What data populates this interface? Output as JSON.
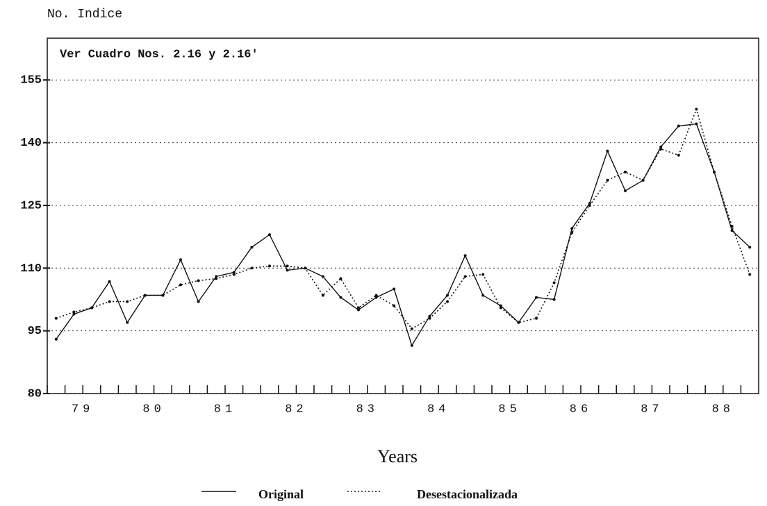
{
  "chart_data": {
    "type": "line",
    "y_label": "No. Indice",
    "annotation": "Ver Cuadro Nos. 2.16 y 2.16'",
    "x_label": "Years",
    "categories": [
      "79",
      null,
      null,
      null,
      "80",
      null,
      null,
      null,
      "81",
      null,
      null,
      null,
      "82",
      null,
      null,
      null,
      "83",
      null,
      null,
      null,
      "84",
      null,
      null,
      null,
      "85",
      null,
      null,
      null,
      "86",
      null,
      null,
      null,
      "87",
      null,
      null,
      null,
      "88",
      null,
      null,
      null
    ],
    "series": [
      {
        "name": "Original",
        "color": "#111111",
        "style": "solid",
        "values": [
          93,
          99,
          100.5,
          106.8,
          97,
          103.5,
          103.5,
          112,
          102,
          108,
          109,
          115,
          118,
          109.5,
          110,
          108,
          103,
          100,
          103,
          105,
          91.5,
          98.5,
          103.5,
          113,
          103.5,
          101,
          97,
          103,
          102.5,
          119.5,
          125.5,
          138,
          128.5,
          131,
          139,
          144,
          144.5,
          133,
          119,
          115
        ]
      },
      {
        "name": "Desestacionalizada",
        "color": "#111111",
        "style": "dotted",
        "values": [
          98,
          99.5,
          100.5,
          102,
          102,
          103.5,
          103.5,
          106,
          107,
          107.5,
          108.5,
          110,
          110.5,
          110.5,
          110,
          103.5,
          107.5,
          100.5,
          103.5,
          101,
          95.5,
          98,
          102,
          108,
          108.5,
          100.5,
          97,
          98,
          106.5,
          118.5,
          125,
          131,
          133,
          131,
          138.5,
          137,
          148,
          133,
          120,
          108.5
        ]
      }
    ],
    "ylim": [
      80,
      165
    ],
    "yticks": [
      80,
      95,
      110,
      125,
      140,
      155
    ],
    "grid": true
  }
}
